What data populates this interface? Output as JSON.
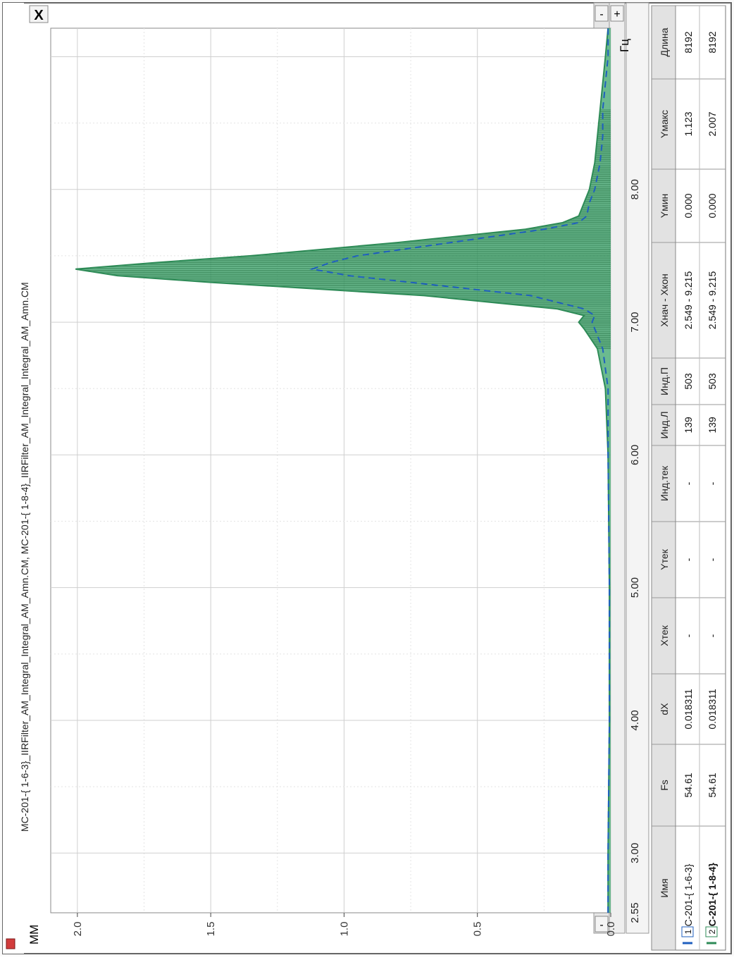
{
  "window": {
    "title": "МС-201-{ 1-6-3}_IIRFilter_AM_Integral_Integral_AM_Amn.CM, МС-201-{ 1-8-4}_IIRFilter_AM_Integral_Integral_AM_Amn.CM",
    "app_icon": "square-app-icon",
    "close_glyph": "X",
    "minus_glyph": "-",
    "plus_glyph": "+"
  },
  "axes": {
    "y_unit": "ММ",
    "x_unit": "Гц"
  },
  "chart_data": {
    "type": "area",
    "title": "",
    "xlabel": "Гц",
    "ylabel": "ММ",
    "xlim": [
      2.55,
      9.215
    ],
    "ylim": [
      0.0,
      2.1
    ],
    "x_ticks": [
      "2.55",
      "3.00",
      "4.00",
      "5.00",
      "6.00",
      "7.00",
      "8.00"
    ],
    "y_ticks": [
      "0.0",
      "0.5",
      "1.0",
      "1.5",
      "2.0"
    ],
    "grid": true,
    "colors": {
      "series1": "#1f5fbf",
      "series2": "#2e8b57",
      "fill": "#3aa36a"
    },
    "series": [
      {
        "name": "МС-201-{ 1-6-3}",
        "style": "dashed",
        "x": [
          2.55,
          3.0,
          4.0,
          5.0,
          6.0,
          6.5,
          6.8,
          6.95,
          7.0,
          7.05,
          7.1,
          7.2,
          7.3,
          7.35,
          7.4,
          7.45,
          7.5,
          7.6,
          7.7,
          7.75,
          7.8,
          7.9,
          8.0,
          8.2,
          8.4,
          8.6,
          8.8,
          9.0,
          9.215
        ],
        "values": [
          0.01,
          0.01,
          0.005,
          0.005,
          0.01,
          0.01,
          0.03,
          0.06,
          0.07,
          0.06,
          0.1,
          0.3,
          0.75,
          0.98,
          1.12,
          1.05,
          0.95,
          0.6,
          0.25,
          0.12,
          0.09,
          0.08,
          0.06,
          0.04,
          0.03,
          0.03,
          0.02,
          0.01,
          0.01
        ]
      },
      {
        "name": "МС-201-{ 1-8-4}",
        "style": "solid-filled",
        "x": [
          2.55,
          3.0,
          4.0,
          5.0,
          6.0,
          6.5,
          6.8,
          6.95,
          7.0,
          7.05,
          7.1,
          7.2,
          7.3,
          7.35,
          7.4,
          7.45,
          7.5,
          7.6,
          7.7,
          7.75,
          7.8,
          7.9,
          8.0,
          8.2,
          8.4,
          8.6,
          8.8,
          9.0,
          9.215
        ],
        "values": [
          0.01,
          0.01,
          0.005,
          0.005,
          0.01,
          0.02,
          0.05,
          0.1,
          0.12,
          0.1,
          0.2,
          0.7,
          1.5,
          1.85,
          2.007,
          1.7,
          1.35,
          0.8,
          0.32,
          0.18,
          0.12,
          0.1,
          0.08,
          0.06,
          0.05,
          0.04,
          0.03,
          0.02,
          0.01
        ]
      }
    ]
  },
  "table": {
    "columns": [
      "Имя",
      "Fs",
      "dX",
      "Xтек",
      "Yтек",
      "Инд.тек",
      "Инд.Л",
      "Инд.П",
      "Xнач - Xкон",
      "Yмин",
      "Yмакс",
      "Длина"
    ],
    "rows": [
      {
        "index": "1",
        "cells": [
          "МС-201-{ 1-6-3}",
          "54.61",
          "0.018311",
          "-",
          "-",
          "-",
          "139",
          "503",
          "2.549 - 9.215",
          "0.000",
          "1.123",
          "8192"
        ]
      },
      {
        "index": "2",
        "cells": [
          "МС-201-{ 1-8-4}",
          "54.61",
          "0.018311",
          "-",
          "-",
          "-",
          "139",
          "503",
          "2.549 - 9.215",
          "0.000",
          "2.007",
          "8192"
        ]
      }
    ]
  }
}
